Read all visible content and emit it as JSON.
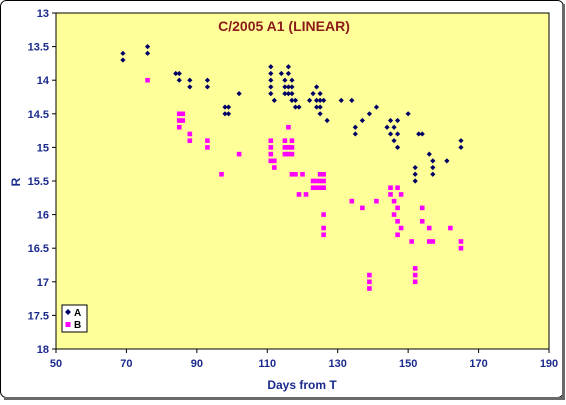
{
  "chart_data": {
    "type": "scatter",
    "title": "C/2005 A1 (LINEAR)",
    "xlabel": "Days from T",
    "ylabel": "R",
    "xlim": [
      50,
      190
    ],
    "ylim": [
      13,
      18
    ],
    "y_inverted": true,
    "grid": false,
    "legend_position": "bottom-left",
    "colors": {
      "background": "#ffff99",
      "frame_border": "#000000",
      "title": "#8b1a1a",
      "axis_text": "#1a2a8c",
      "A": "#000066",
      "B": "#ff00ff"
    },
    "x_ticks": [
      50,
      70,
      90,
      110,
      130,
      150,
      170,
      190
    ],
    "x_tick_labels": [
      "50",
      "70",
      "90",
      "110",
      "130",
      "150",
      "170",
      "190"
    ],
    "y_ticks": [
      13,
      13.5,
      14,
      14.5,
      15,
      15.5,
      16,
      16.5,
      17,
      17.5,
      18
    ],
    "y_tick_labels": [
      "13",
      "13.5",
      "14",
      "14.5",
      "15",
      "15.5",
      "16",
      "16.5",
      "17",
      "17.5",
      "18"
    ],
    "series": [
      {
        "name": "A",
        "marker": "diamond",
        "points": [
          [
            69,
            13.6
          ],
          [
            69,
            13.7
          ],
          [
            76,
            13.5
          ],
          [
            76,
            13.6
          ],
          [
            84,
            13.9
          ],
          [
            85,
            13.9
          ],
          [
            85,
            14.0
          ],
          [
            88,
            14.0
          ],
          [
            88,
            14.1
          ],
          [
            93,
            14.0
          ],
          [
            93,
            14.1
          ],
          [
            98,
            14.4
          ],
          [
            98,
            14.5
          ],
          [
            99,
            14.4
          ],
          [
            99,
            14.5
          ],
          [
            102,
            14.2
          ],
          [
            111,
            13.8
          ],
          [
            111,
            13.9
          ],
          [
            111,
            14.0
          ],
          [
            111,
            14.1
          ],
          [
            111,
            14.2
          ],
          [
            112,
            14.3
          ],
          [
            114,
            13.9
          ],
          [
            115,
            14.0
          ],
          [
            115,
            14.1
          ],
          [
            115,
            14.2
          ],
          [
            116,
            13.8
          ],
          [
            116,
            13.9
          ],
          [
            116,
            14.1
          ],
          [
            116,
            14.2
          ],
          [
            117,
            14.0
          ],
          [
            117,
            14.1
          ],
          [
            117,
            14.2
          ],
          [
            117,
            14.3
          ],
          [
            118,
            14.3
          ],
          [
            118,
            14.4
          ],
          [
            119,
            14.4
          ],
          [
            122,
            14.3
          ],
          [
            123,
            14.2
          ],
          [
            124,
            14.1
          ],
          [
            124,
            14.3
          ],
          [
            124,
            14.4
          ],
          [
            125,
            14.2
          ],
          [
            125,
            14.3
          ],
          [
            125,
            14.4
          ],
          [
            125,
            14.5
          ],
          [
            126,
            14.3
          ],
          [
            127,
            14.6
          ],
          [
            131,
            14.3
          ],
          [
            134,
            14.3
          ],
          [
            135,
            14.8
          ],
          [
            135,
            14.7
          ],
          [
            137,
            14.6
          ],
          [
            139,
            14.5
          ],
          [
            141,
            14.4
          ],
          [
            144,
            14.7
          ],
          [
            145,
            14.6
          ],
          [
            145,
            14.8
          ],
          [
            146,
            14.7
          ],
          [
            146,
            14.9
          ],
          [
            147,
            14.6
          ],
          [
            147,
            14.8
          ],
          [
            147,
            15.0
          ],
          [
            150,
            14.5
          ],
          [
            152,
            15.3
          ],
          [
            152,
            15.4
          ],
          [
            152,
            15.5
          ],
          [
            153,
            14.8
          ],
          [
            154,
            14.8
          ],
          [
            156,
            15.1
          ],
          [
            157,
            15.2
          ],
          [
            157,
            15.3
          ],
          [
            157,
            15.4
          ],
          [
            161,
            15.2
          ],
          [
            165,
            14.9
          ],
          [
            165,
            15.0
          ]
        ]
      },
      {
        "name": "B",
        "marker": "square",
        "points": [
          [
            76,
            14.0
          ],
          [
            85,
            14.5
          ],
          [
            85,
            14.6
          ],
          [
            85,
            14.7
          ],
          [
            86,
            14.5
          ],
          [
            86,
            14.6
          ],
          [
            88,
            14.8
          ],
          [
            88,
            14.9
          ],
          [
            93,
            14.9
          ],
          [
            93,
            15.0
          ],
          [
            97,
            15.4
          ],
          [
            102,
            15.1
          ],
          [
            111,
            14.9
          ],
          [
            111,
            15.0
          ],
          [
            111,
            15.1
          ],
          [
            111,
            15.2
          ],
          [
            112,
            15.2
          ],
          [
            112,
            15.3
          ],
          [
            115,
            14.9
          ],
          [
            115,
            15.0
          ],
          [
            115,
            15.1
          ],
          [
            116,
            14.7
          ],
          [
            116,
            15.0
          ],
          [
            116,
            15.1
          ],
          [
            117,
            14.9
          ],
          [
            117,
            15.0
          ],
          [
            117,
            15.1
          ],
          [
            117,
            15.4
          ],
          [
            118,
            15.4
          ],
          [
            119,
            15.7
          ],
          [
            120,
            15.4
          ],
          [
            121,
            15.7
          ],
          [
            123,
            15.5
          ],
          [
            123,
            15.6
          ],
          [
            124,
            15.5
          ],
          [
            124,
            15.6
          ],
          [
            125,
            15.4
          ],
          [
            125,
            15.5
          ],
          [
            125,
            15.6
          ],
          [
            126,
            15.4
          ],
          [
            126,
            15.5
          ],
          [
            126,
            15.6
          ],
          [
            126,
            16.0
          ],
          [
            126,
            16.2
          ],
          [
            126,
            16.3
          ],
          [
            134,
            15.8
          ],
          [
            137,
            15.9
          ],
          [
            139,
            16.9
          ],
          [
            139,
            17.0
          ],
          [
            139,
            17.1
          ],
          [
            141,
            15.8
          ],
          [
            145,
            15.6
          ],
          [
            145,
            15.7
          ],
          [
            146,
            15.8
          ],
          [
            146,
            16.0
          ],
          [
            147,
            15.6
          ],
          [
            147,
            15.9
          ],
          [
            147,
            16.1
          ],
          [
            147,
            16.3
          ],
          [
            148,
            15.7
          ],
          [
            148,
            16.2
          ],
          [
            151,
            16.4
          ],
          [
            152,
            16.8
          ],
          [
            152,
            16.9
          ],
          [
            152,
            17.0
          ],
          [
            154,
            15.9
          ],
          [
            154,
            16.1
          ],
          [
            156,
            16.2
          ],
          [
            156,
            16.4
          ],
          [
            157,
            16.4
          ],
          [
            162,
            16.2
          ],
          [
            165,
            16.4
          ],
          [
            165,
            16.5
          ]
        ]
      }
    ]
  }
}
